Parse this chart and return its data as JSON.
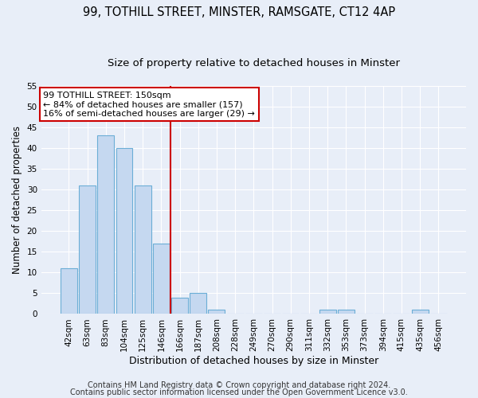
{
  "title1": "99, TOTHILL STREET, MINSTER, RAMSGATE, CT12 4AP",
  "title2": "Size of property relative to detached houses in Minster",
  "xlabel": "Distribution of detached houses by size in Minster",
  "ylabel": "Number of detached properties",
  "categories": [
    "42sqm",
    "63sqm",
    "83sqm",
    "104sqm",
    "125sqm",
    "146sqm",
    "166sqm",
    "187sqm",
    "208sqm",
    "228sqm",
    "249sqm",
    "270sqm",
    "290sqm",
    "311sqm",
    "332sqm",
    "353sqm",
    "373sqm",
    "394sqm",
    "415sqm",
    "435sqm",
    "456sqm"
  ],
  "values": [
    11,
    31,
    43,
    40,
    31,
    17,
    4,
    5,
    1,
    0,
    0,
    0,
    0,
    0,
    1,
    1,
    0,
    0,
    0,
    1,
    0
  ],
  "bar_color": "#c5d8f0",
  "bar_edge_color": "#6baed6",
  "vline_x": 5.5,
  "vline_color": "#cc0000",
  "annotation_text": "99 TOTHILL STREET: 150sqm\n← 84% of detached houses are smaller (157)\n16% of semi-detached houses are larger (29) →",
  "annotation_box_color": "#ffffff",
  "annotation_box_edge_color": "#cc0000",
  "ylim": [
    0,
    55
  ],
  "yticks": [
    0,
    5,
    10,
    15,
    20,
    25,
    30,
    35,
    40,
    45,
    50,
    55
  ],
  "footer1": "Contains HM Land Registry data © Crown copyright and database right 2024.",
  "footer2": "Contains public sector information licensed under the Open Government Licence v3.0.",
  "bg_color": "#e8eef8",
  "grid_color": "#ffffff",
  "title1_fontsize": 10.5,
  "title2_fontsize": 9.5,
  "xlabel_fontsize": 9,
  "ylabel_fontsize": 8.5,
  "tick_fontsize": 7.5,
  "annotation_fontsize": 8,
  "footer_fontsize": 7
}
